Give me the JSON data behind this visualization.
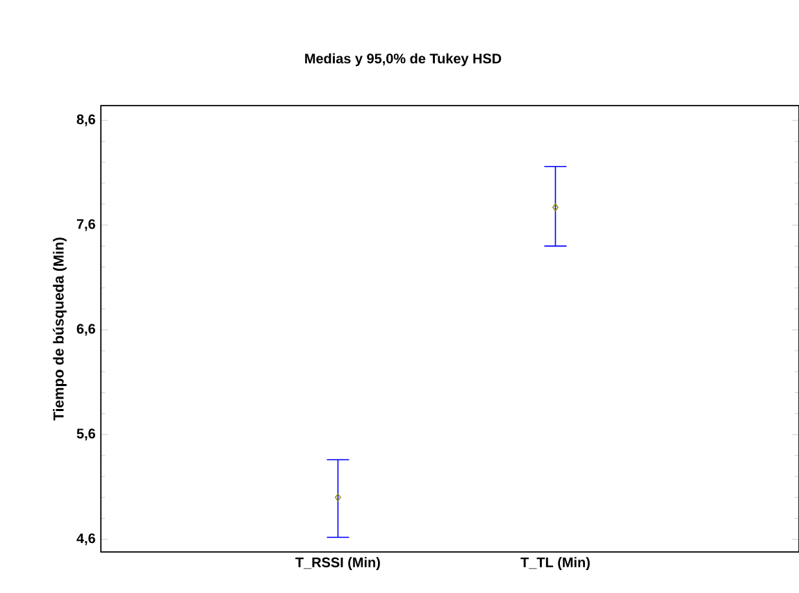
{
  "chart_data": {
    "type": "scatter",
    "title": "Medias y 95,0% de Tukey HSD",
    "ylabel": "Tiempo de búsqueda (Min)",
    "categories": [
      "T_RSSI (Min)",
      "T_TL (Min)"
    ],
    "values": [
      5.0,
      7.77
    ],
    "errors": [
      [
        4.62,
        5.36
      ],
      [
        7.4,
        8.16
      ]
    ],
    "color": "#8c8c00",
    "marker": "diamond",
    "ylim": [
      4.48,
      8.74
    ],
    "yticks": [
      {
        "value": 4.6,
        "label": "4,6"
      },
      {
        "value": 5.6,
        "label": "5,6"
      },
      {
        "value": 6.6,
        "label": "6,6"
      },
      {
        "value": 7.6,
        "label": "7,6"
      },
      {
        "value": 8.6,
        "label": "8,6"
      }
    ],
    "grid": false
  }
}
